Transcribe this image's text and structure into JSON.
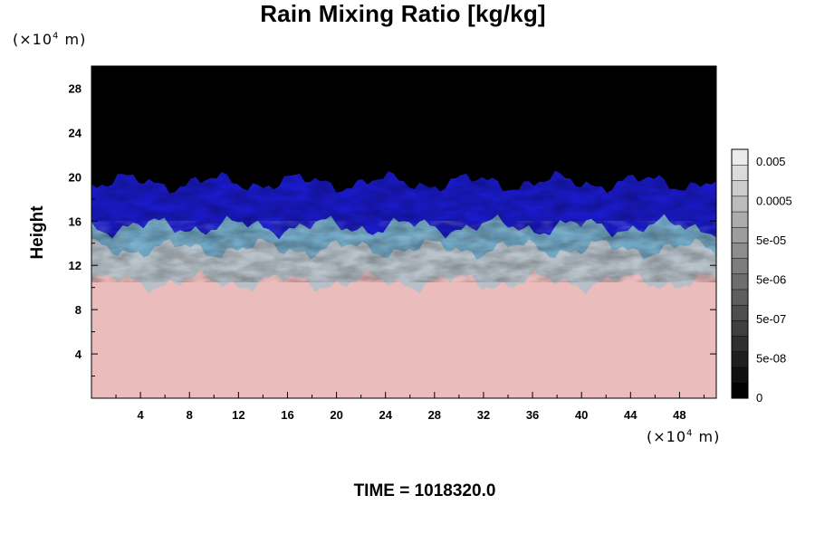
{
  "title": "Rain Mixing Ratio [kg/kg]",
  "y_unit_prefix": "(×10",
  "y_unit_exp": "4",
  "y_unit_suffix": " m)",
  "x_unit_prefix": "(×10",
  "x_unit_exp": "4",
  "x_unit_suffix": " m)",
  "ylabel": "Height",
  "time_label": "TIME = 1018320.0",
  "chart_data": {
    "type": "heatmap",
    "title": "Rain Mixing Ratio [kg/kg]",
    "xlabel": "",
    "ylabel": "Height",
    "x_unit": "(×10^4 m)",
    "y_unit": "(×10^4 m)",
    "xlim": [
      0,
      51
    ],
    "ylim": [
      0,
      30
    ],
    "x_ticks": [
      4,
      8,
      12,
      16,
      20,
      24,
      28,
      32,
      36,
      40,
      44,
      48
    ],
    "y_ticks": [
      4,
      8,
      12,
      16,
      20,
      24,
      28
    ],
    "bands": [
      {
        "name": "pink",
        "y_from": 0,
        "y_to": 10.5,
        "color": "#ebbcbc"
      },
      {
        "name": "grey-cyan",
        "y_from": 10.5,
        "y_to": 13.5,
        "color": "#b7c0c8"
      },
      {
        "name": "cyan-blue",
        "y_from": 13.5,
        "y_to": 15.5,
        "color": "#6fa6c4"
      },
      {
        "name": "blue",
        "y_from": 15.5,
        "y_to": 19.5,
        "color": "#1a1ac8"
      },
      {
        "name": "black",
        "y_from": 19.5,
        "y_to": 30,
        "color": "#000000"
      }
    ],
    "colorbar": {
      "labels": [
        "0.005",
        "0.0005",
        "5e-05",
        "5e-06",
        "5e-07",
        "5e-08",
        "0"
      ],
      "levels": 16
    }
  }
}
